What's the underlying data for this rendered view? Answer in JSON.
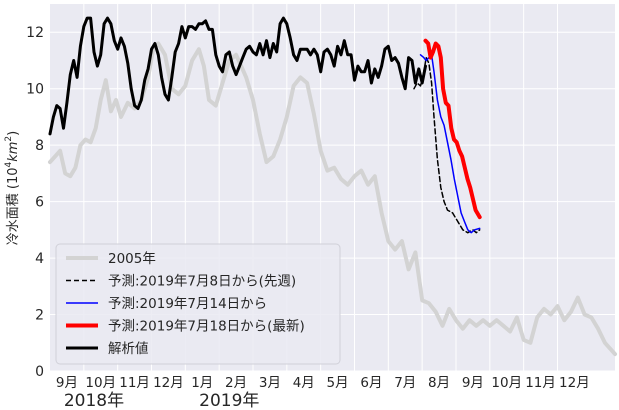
{
  "chart_data": {
    "type": "line",
    "ylabel_prefix": "冷水面積 (10",
    "ylabel_sup1": "4",
    "ylabel_unit": "km",
    "ylabel_sup2": "2",
    "ylabel_suffix": ")",
    "ylim": [
      0,
      13
    ],
    "yticks": [
      "0",
      "2",
      "4",
      "6",
      "8",
      "10",
      "12"
    ],
    "xlim": [
      0,
      16.7
    ],
    "month_ticks": [
      {
        "x": 0.5,
        "label": "9月"
      },
      {
        "x": 1.5,
        "label": "10月"
      },
      {
        "x": 2.5,
        "label": "11月"
      },
      {
        "x": 3.5,
        "label": "12月"
      },
      {
        "x": 4.5,
        "label": "1月"
      },
      {
        "x": 5.5,
        "label": "2月"
      },
      {
        "x": 6.5,
        "label": "3月"
      },
      {
        "x": 7.5,
        "label": "4月"
      },
      {
        "x": 8.5,
        "label": "5月"
      },
      {
        "x": 9.5,
        "label": "6月"
      },
      {
        "x": 10.5,
        "label": "7月"
      },
      {
        "x": 11.5,
        "label": "8月"
      },
      {
        "x": 12.5,
        "label": "9月"
      },
      {
        "x": 13.5,
        "label": "10月"
      },
      {
        "x": 14.5,
        "label": "11月"
      },
      {
        "x": 15.5,
        "label": "12月"
      }
    ],
    "year_labels": [
      {
        "x": 1.3,
        "label": "2018年"
      },
      {
        "x": 5.3,
        "label": "2019年"
      }
    ],
    "grid": true,
    "legend_position": "lower-left",
    "series": [
      {
        "name": "2005年",
        "color": "#d3d3d3",
        "width": 4,
        "dash": "",
        "x": [
          0,
          0.15,
          0.3,
          0.45,
          0.6,
          0.75,
          0.9,
          1.05,
          1.2,
          1.35,
          1.5,
          1.65,
          1.8,
          1.95,
          2.1,
          2.3,
          2.5,
          2.7,
          2.9,
          3.05,
          3.2,
          3.4,
          3.6,
          3.8,
          4.0,
          4.2,
          4.4,
          4.55,
          4.7,
          4.9,
          5.1,
          5.3,
          5.5,
          5.65,
          5.8,
          6.0,
          6.2,
          6.4,
          6.6,
          6.8,
          7.0,
          7.2,
          7.4,
          7.6,
          7.8,
          8.0,
          8.2,
          8.4,
          8.6,
          8.8,
          9.0,
          9.2,
          9.4,
          9.6,
          9.8,
          10.0,
          10.2,
          10.4,
          10.6,
          10.8,
          11.0,
          11.2,
          11.4,
          11.6,
          11.8,
          12.0,
          12.2,
          12.4,
          12.6,
          12.8,
          13.0,
          13.2,
          13.4,
          13.6,
          13.8,
          14.0,
          14.2,
          14.4,
          14.6,
          14.8,
          15.0,
          15.2,
          15.4,
          15.6,
          15.8,
          16.0,
          16.2,
          16.4,
          16.7
        ],
        "y": [
          7.4,
          7.6,
          7.8,
          7.0,
          6.9,
          7.2,
          8.0,
          8.2,
          8.1,
          8.6,
          9.6,
          10.3,
          9.2,
          9.6,
          9.0,
          9.5,
          9.3,
          9.6,
          10.4,
          11.4,
          11.6,
          11.2,
          10.0,
          9.8,
          10.1,
          11.0,
          11.4,
          10.8,
          9.6,
          9.4,
          10.2,
          11.0,
          11.2,
          10.8,
          10.4,
          9.6,
          8.4,
          7.4,
          7.6,
          8.2,
          9.0,
          10.1,
          10.4,
          10.2,
          9.1,
          7.8,
          7.1,
          7.2,
          6.8,
          6.6,
          6.9,
          7.1,
          6.6,
          6.9,
          5.6,
          4.6,
          4.3,
          4.6,
          3.6,
          4.2,
          2.5,
          2.4,
          2.1,
          1.6,
          2.2,
          1.8,
          1.5,
          1.8,
          1.6,
          1.8,
          1.6,
          1.8,
          1.6,
          1.4,
          1.9,
          1.1,
          1.0,
          1.9,
          2.2,
          2.0,
          2.3,
          1.8,
          2.1,
          2.6,
          2.0,
          1.9,
          1.5,
          1.0,
          0.6
        ]
      },
      {
        "name": "予測:2019年7月8日から(先週)",
        "color": "#000000",
        "width": 1.5,
        "dash": "5,3",
        "x": [
          10.76,
          10.85,
          10.95,
          11.05,
          11.12,
          11.2,
          11.28,
          11.35,
          11.45,
          11.55,
          11.65,
          11.75,
          11.9,
          12.05,
          12.2,
          12.35,
          12.5,
          12.6,
          12.7
        ],
        "y": [
          10.0,
          10.2,
          10.1,
          10.6,
          11.1,
          10.9,
          10.2,
          9.0,
          7.5,
          6.5,
          6.0,
          5.7,
          5.6,
          5.3,
          5.0,
          4.9,
          5.0,
          4.9,
          5.0
        ]
      },
      {
        "name": "予測:2019年7月14日から",
        "color": "#0000ff",
        "width": 1.5,
        "dash": "",
        "x": [
          10.95,
          11.05,
          11.12,
          11.2,
          11.28,
          11.35,
          11.45,
          11.55,
          11.65,
          11.75,
          11.85,
          11.95,
          12.05,
          12.15,
          12.25,
          12.35,
          12.45,
          12.55,
          12.7
        ],
        "y": [
          11.2,
          11.1,
          11.0,
          11.1,
          11.2,
          10.6,
          9.6,
          9.0,
          8.7,
          8.1,
          7.5,
          6.8,
          6.2,
          5.6,
          5.3,
          5.0,
          4.9,
          5.0,
          5.05
        ]
      },
      {
        "name": "予測:2019年7月18日から(最新)",
        "color": "#ff0000",
        "width": 4,
        "dash": "",
        "x": [
          11.1,
          11.18,
          11.25,
          11.32,
          11.4,
          11.48,
          11.55,
          11.62,
          11.7,
          11.78,
          11.86,
          11.94,
          12.02,
          12.1,
          12.18,
          12.26,
          12.34,
          12.42,
          12.5,
          12.58,
          12.7
        ],
        "y": [
          11.7,
          11.6,
          11.1,
          11.3,
          11.6,
          11.5,
          11.1,
          10.0,
          9.5,
          9.4,
          8.6,
          8.2,
          8.1,
          7.8,
          7.6,
          7.2,
          6.8,
          6.5,
          6.1,
          5.7,
          5.45
        ]
      },
      {
        "name": "解析値",
        "color": "#000000",
        "width": 3,
        "dash": "",
        "x": [
          0,
          0.1,
          0.2,
          0.3,
          0.4,
          0.5,
          0.6,
          0.7,
          0.8,
          0.9,
          1.0,
          1.1,
          1.2,
          1.3,
          1.4,
          1.5,
          1.6,
          1.7,
          1.8,
          1.9,
          2.0,
          2.1,
          2.2,
          2.3,
          2.4,
          2.5,
          2.6,
          2.7,
          2.8,
          2.9,
          3.0,
          3.1,
          3.2,
          3.3,
          3.4,
          3.5,
          3.6,
          3.7,
          3.8,
          3.9,
          4.0,
          4.1,
          4.2,
          4.3,
          4.4,
          4.5,
          4.6,
          4.7,
          4.8,
          4.9,
          5.0,
          5.1,
          5.2,
          5.3,
          5.4,
          5.5,
          5.6,
          5.7,
          5.8,
          5.9,
          6.0,
          6.1,
          6.2,
          6.3,
          6.4,
          6.5,
          6.6,
          6.7,
          6.8,
          6.9,
          7.0,
          7.1,
          7.2,
          7.3,
          7.4,
          7.5,
          7.6,
          7.7,
          7.8,
          7.9,
          8.0,
          8.1,
          8.2,
          8.3,
          8.4,
          8.5,
          8.6,
          8.7,
          8.8,
          8.9,
          9.0,
          9.1,
          9.2,
          9.3,
          9.4,
          9.5,
          9.6,
          9.7,
          9.8,
          9.9,
          10.0,
          10.1,
          10.2,
          10.3,
          10.4,
          10.5,
          10.6,
          10.7,
          10.8,
          10.9,
          11.0,
          11.1
        ],
        "y": [
          8.4,
          9.0,
          9.4,
          9.3,
          8.6,
          9.5,
          10.5,
          11.0,
          10.4,
          11.5,
          12.2,
          12.5,
          12.5,
          11.3,
          10.8,
          11.2,
          12.3,
          12.5,
          12.3,
          11.7,
          11.4,
          11.8,
          11.5,
          10.9,
          10.0,
          9.4,
          9.3,
          9.6,
          10.3,
          10.7,
          11.4,
          11.6,
          11.2,
          10.4,
          9.8,
          9.6,
          10.4,
          11.3,
          11.6,
          12.2,
          11.8,
          12.2,
          12.2,
          12.1,
          12.3,
          12.3,
          12.4,
          12.1,
          12.1,
          11.2,
          10.8,
          10.6,
          11.2,
          11.3,
          10.8,
          10.5,
          10.8,
          11.1,
          11.4,
          11.5,
          11.3,
          11.2,
          11.6,
          11.2,
          11.7,
          11.1,
          11.6,
          11.3,
          12.3,
          12.5,
          12.3,
          11.8,
          11.2,
          11.0,
          11.4,
          11.4,
          11.4,
          11.2,
          11.4,
          11.2,
          10.6,
          11.3,
          11.4,
          11.2,
          10.8,
          11.5,
          11.2,
          11.7,
          11.2,
          11.2,
          10.3,
          10.8,
          10.6,
          10.6,
          11.0,
          10.2,
          10.7,
          10.4,
          10.8,
          11.4,
          11.5,
          11.0,
          11.1,
          10.9,
          10.4,
          10.0,
          11.1,
          11.0,
          10.2,
          10.7,
          10.2,
          10.8
        ]
      }
    ]
  }
}
